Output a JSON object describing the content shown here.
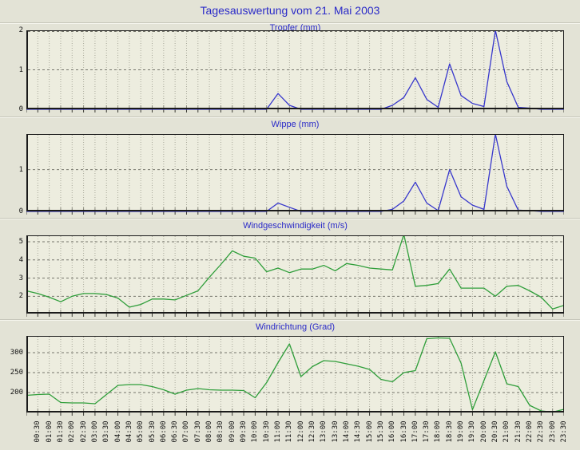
{
  "window": {
    "title": "Tagesauswertung vom 21. Mai 2003"
  },
  "colors": {
    "page_bg": "#e3e3d6",
    "plot_bg": "#ededdf",
    "title_blue": "#2a2ac8",
    "rain_line": "#3838cc",
    "wind_line": "#2f9e3a",
    "grid_minor": "#a9a99b",
    "grid_major": "#75756b",
    "axis": "#1a1a1a"
  },
  "x_axis": {
    "first_point": "00:00",
    "step_minutes": 30,
    "tick_labels": [
      "00:30",
      "01:00",
      "01:30",
      "02:00",
      "02:30",
      "03:00",
      "03:30",
      "04:00",
      "04:30",
      "05:00",
      "05:30",
      "06:00",
      "06:30",
      "07:00",
      "07:30",
      "08:00",
      "08:30",
      "09:00",
      "09:30",
      "10:00",
      "10:30",
      "11:00",
      "11:30",
      "12:00",
      "12:30",
      "13:00",
      "13:30",
      "14:00",
      "14:30",
      "15:00",
      "15:30",
      "16:00",
      "16:30",
      "17:00",
      "17:30",
      "18:00",
      "18:30",
      "19:00",
      "19:30",
      "20:00",
      "20:30",
      "21:00",
      "21:30",
      "22:00",
      "22:30",
      "23:00",
      "23:30"
    ]
  },
  "chart_data": [
    {
      "type": "line",
      "id": "tropfer",
      "title": "Tropfer (mm)",
      "color_key": "rain_line",
      "y_ticks": [
        0,
        1,
        2
      ],
      "ylim": [
        0,
        2
      ],
      "values": [
        0,
        0,
        0,
        0,
        0,
        0,
        0,
        0,
        0,
        0,
        0,
        0,
        0,
        0,
        0,
        0,
        0,
        0,
        0,
        0,
        0,
        0,
        0.4,
        0.1,
        0,
        0,
        0,
        0,
        0,
        0,
        0,
        0,
        0.1,
        0.3,
        0.8,
        0.25,
        0.05,
        1.15,
        0.35,
        0.15,
        0.07,
        2,
        0.7,
        0.05,
        0.03,
        0,
        0,
        0
      ]
    },
    {
      "type": "line",
      "id": "wippe",
      "title": "Wippe (mm)",
      "color_key": "rain_line",
      "y_ticks": [
        0,
        1
      ],
      "ylim": [
        0,
        1.85
      ],
      "values": [
        0,
        0,
        0,
        0,
        0,
        0,
        0,
        0,
        0,
        0,
        0,
        0,
        0,
        0,
        0,
        0,
        0,
        0,
        0,
        0,
        0,
        0,
        0.2,
        0.1,
        0,
        0,
        0,
        0,
        0,
        0,
        0,
        0,
        0.05,
        0.25,
        0.7,
        0.2,
        0.02,
        1,
        0.35,
        0.15,
        0.05,
        1.85,
        0.6,
        0.03,
        0.02,
        0,
        0,
        0
      ]
    },
    {
      "type": "line",
      "id": "windgeschwindigkeit",
      "title": "Windgeschwindigkeit (m/s)",
      "color_key": "wind_line",
      "y_ticks": [
        2,
        3,
        4,
        5
      ],
      "ylim": [
        1.05,
        5.35
      ],
      "values": [
        2.3,
        2.15,
        1.95,
        1.7,
        2.0,
        2.15,
        2.15,
        2.1,
        1.9,
        1.4,
        1.55,
        1.85,
        1.85,
        1.8,
        2.05,
        2.3,
        3.05,
        3.75,
        4.5,
        4.2,
        4.1,
        3.35,
        3.55,
        3.3,
        3.5,
        3.5,
        3.7,
        3.4,
        3.8,
        3.7,
        3.55,
        3.5,
        3.45,
        5.4,
        2.55,
        2.6,
        2.7,
        3.5,
        2.45,
        2.45,
        2.45,
        2.0,
        2.55,
        2.6,
        2.3,
        1.95,
        1.3,
        1.5
      ]
    },
    {
      "type": "line",
      "id": "windrichtung",
      "title": "Windrichtung (Grad)",
      "color_key": "wind_line",
      "y_ticks": [
        200,
        250,
        300
      ],
      "ylim": [
        150,
        342
      ],
      "values": [
        193,
        195,
        196,
        175,
        174,
        174,
        172,
        195,
        218,
        220,
        220,
        215,
        207,
        196,
        206,
        210,
        207,
        206,
        206,
        205,
        187,
        225,
        275,
        322,
        240,
        265,
        280,
        278,
        272,
        266,
        258,
        233,
        227,
        250,
        255,
        335,
        337,
        336,
        274,
        157,
        230,
        302,
        222,
        215,
        168,
        154,
        151,
        158
      ]
    }
  ]
}
